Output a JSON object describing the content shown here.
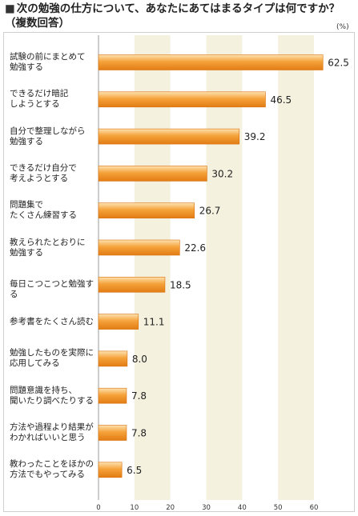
{
  "title": "次の勉強の仕方について、あなたにあてはまるタイプは何ですか？（複数回答）",
  "title_marker": "■",
  "unit": "(%)",
  "chart_data": {
    "type": "bar",
    "orientation": "horizontal",
    "title": "次の勉強の仕方について、あなたにあてはまるタイプは何ですか？（複数回答）",
    "unit": "(%)",
    "categories": [
      "試験の前にまとめて\n勉強する",
      "できるだけ暗記\nしようとする",
      "自分で整理しながら\n勉強する",
      "できるだけ自分で\n考えようとする",
      "問題集で\nたくさん練習する",
      "教えられたとおりに\n勉強する",
      "毎日こつこつと勉強する",
      "参考書をたくさん読む",
      "勉強したものを実際に\n応用してみる",
      "問題意識を持ち、\n聞いたり調べたりする",
      "方法や過程より結果が\nわかればいいと思う",
      "教わったことをほかの\n方法でもやってみる"
    ],
    "values": [
      62.5,
      46.5,
      39.2,
      30.2,
      26.7,
      22.6,
      18.5,
      11.1,
      8.0,
      7.8,
      7.8,
      6.5
    ],
    "value_labels": [
      "62.5",
      "46.5",
      "39.2",
      "30.2",
      "26.7",
      "22.6",
      "18.5",
      "11.1",
      "8.0",
      "7.8",
      "7.8",
      "6.5"
    ],
    "xticks": [
      "0",
      "10",
      "20",
      "30",
      "40",
      "50",
      "60"
    ],
    "xlim": [
      0,
      70
    ],
    "grid": "alternating vertical bands",
    "colors": {
      "bar_light": "#fbd9a0",
      "bar_mid": "#f39a2e",
      "bar_dark": "#e07a12",
      "band": "#f4f1df"
    }
  }
}
